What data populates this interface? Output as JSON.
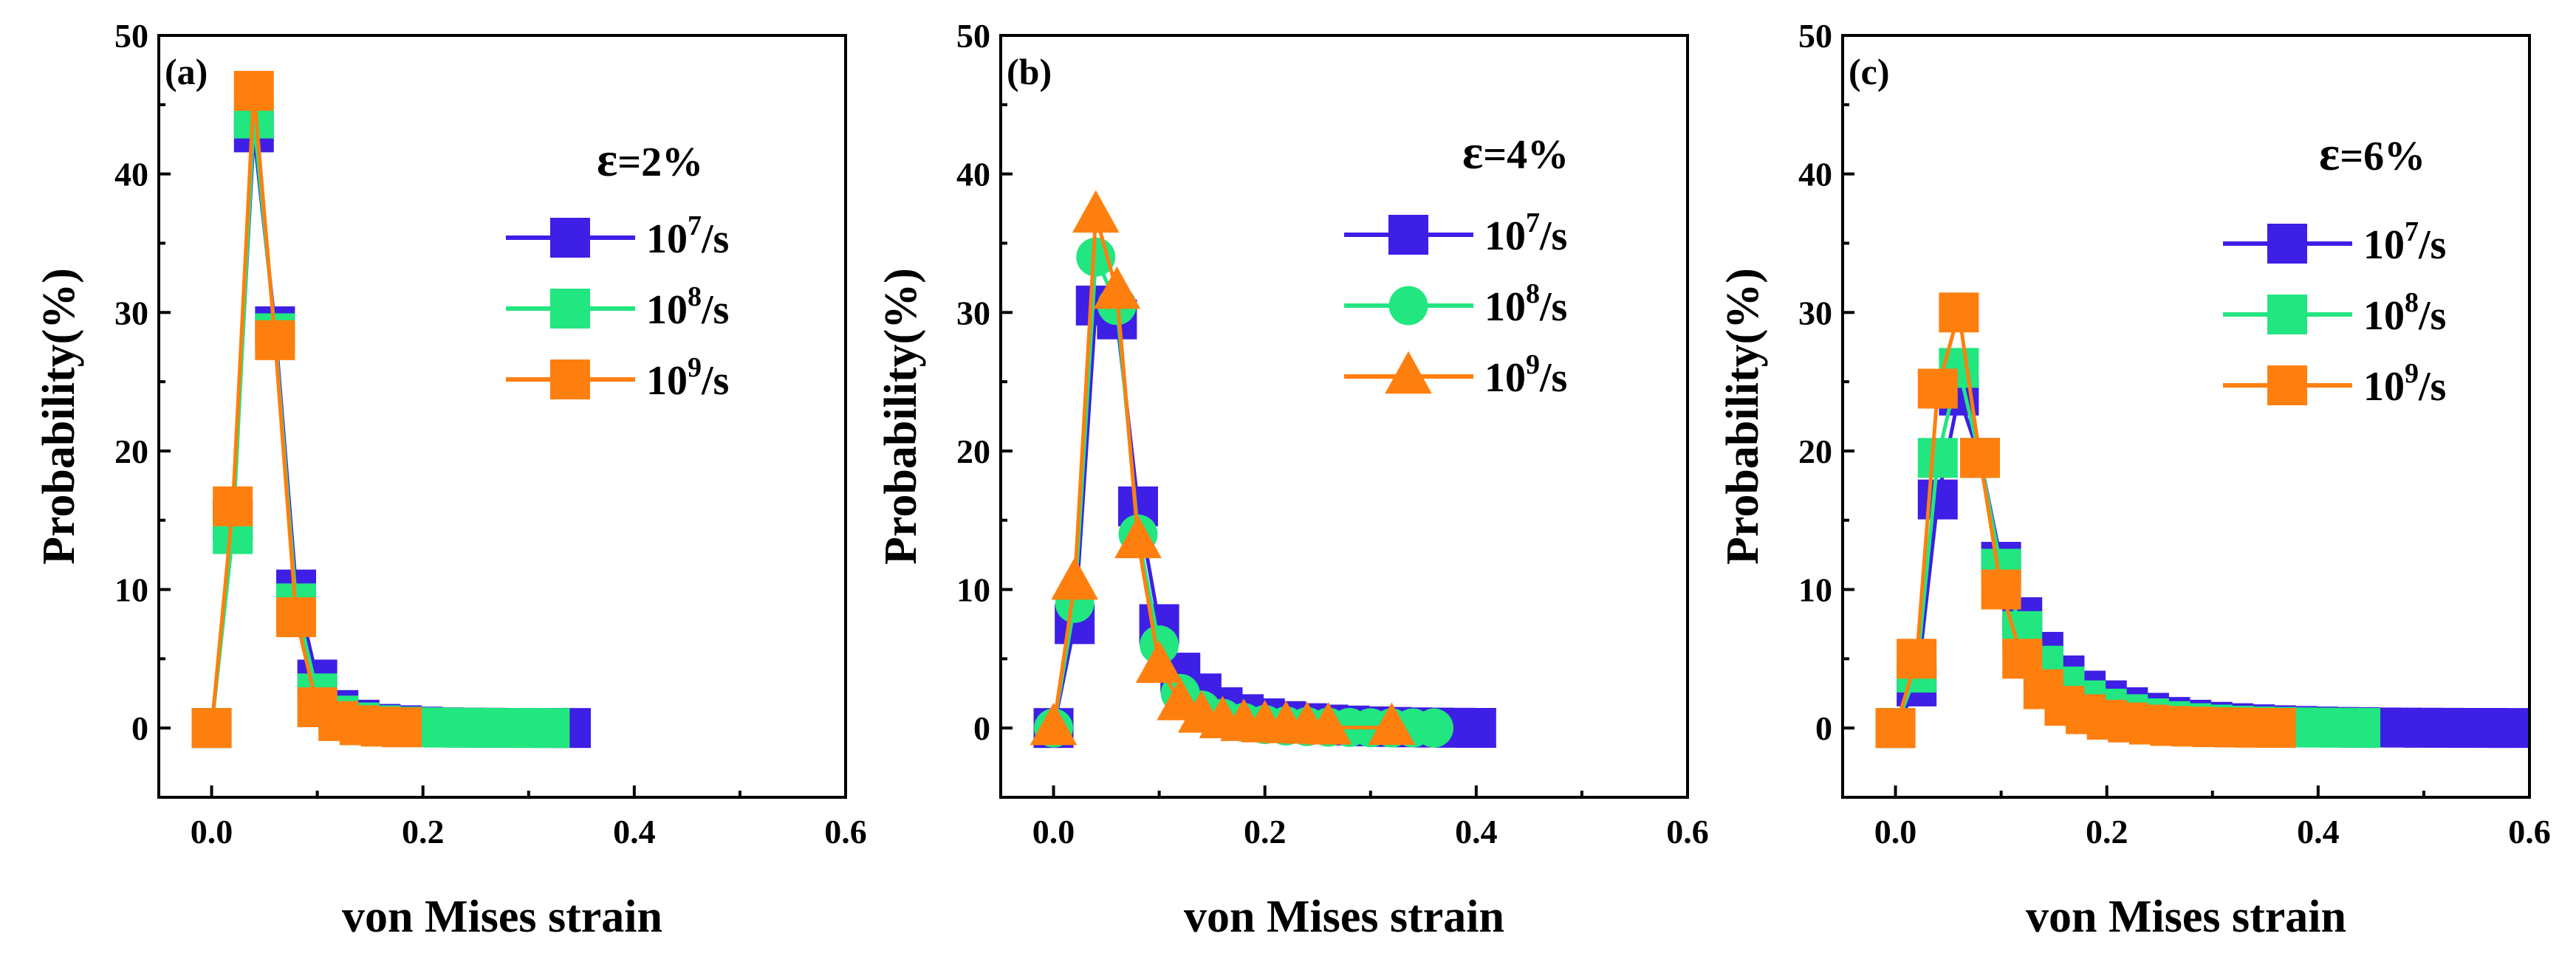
{
  "chart_data": [
    {
      "type": "line",
      "panel_label": "(a)",
      "strain_symbol": "ε",
      "strain_value": "=2%",
      "xlabel": "von Mises strain",
      "ylabel": "Probability(%)",
      "xlim": [
        -0.05,
        0.6
      ],
      "ylim": [
        -5,
        50
      ],
      "xticks": [
        "0.0",
        "0.2",
        "0.4",
        "0.6"
      ],
      "yticks": [
        "0",
        "10",
        "20",
        "30",
        "40",
        "50"
      ],
      "series": [
        {
          "name": "10^7/s",
          "rate_base": "10",
          "rate_exp": "7",
          "rate_unit": "/s",
          "marker": "square",
          "color": "#3d1fe6",
          "x": [
            0.0,
            0.02,
            0.04,
            0.06,
            0.08,
            0.1,
            0.12,
            0.14,
            0.16,
            0.18,
            0.2,
            0.22,
            0.24,
            0.26,
            0.28,
            0.3,
            0.32,
            0.34
          ],
          "y": [
            0,
            15,
            43,
            29,
            10,
            3.5,
            1.3,
            0.6,
            0.3,
            0.2,
            0.1,
            0.05,
            0.03,
            0.02,
            0.01,
            0.01,
            0.005,
            0.002
          ]
        },
        {
          "name": "10^8/s",
          "rate_base": "10",
          "rate_exp": "8",
          "rate_unit": "/s",
          "marker": "square",
          "color": "#22e680",
          "x": [
            0.0,
            0.02,
            0.04,
            0.06,
            0.08,
            0.1,
            0.12,
            0.14,
            0.16,
            0.18,
            0.2,
            0.22,
            0.24,
            0.26,
            0.28,
            0.3,
            0.32
          ],
          "y": [
            0,
            14,
            44,
            28.5,
            9,
            2.5,
            0.9,
            0.4,
            0.2,
            0.1,
            0.05,
            0.03,
            0.02,
            0.01,
            0.005,
            0.003,
            0.002
          ]
        },
        {
          "name": "10^9/s",
          "rate_base": "10",
          "rate_exp": "9",
          "rate_unit": "/s",
          "marker": "square",
          "color": "#ff7f0e",
          "x": [
            0.0,
            0.02,
            0.04,
            0.06,
            0.08,
            0.1,
            0.12,
            0.14,
            0.16,
            0.18
          ],
          "y": [
            0,
            16,
            46,
            28,
            8,
            1.5,
            0.5,
            0.2,
            0.1,
            0.05
          ]
        }
      ]
    },
    {
      "type": "line",
      "panel_label": "(b)",
      "strain_symbol": "ε",
      "strain_value": "=4%",
      "xlabel": "von Mises strain",
      "ylabel": "Probability(%)",
      "xlim": [
        -0.05,
        0.6
      ],
      "ylim": [
        -5,
        50
      ],
      "xticks": [
        "0.0",
        "0.2",
        "0.4",
        "0.6"
      ],
      "yticks": [
        "0",
        "10",
        "20",
        "30",
        "40",
        "50"
      ],
      "series": [
        {
          "name": "10^7/s",
          "rate_base": "10",
          "rate_exp": "7",
          "rate_unit": "/s",
          "marker": "square",
          "color": "#3d1fe6",
          "x": [
            0.0,
            0.02,
            0.04,
            0.06,
            0.08,
            0.1,
            0.12,
            0.14,
            0.16,
            0.18,
            0.2,
            0.22,
            0.24,
            0.26,
            0.28,
            0.3,
            0.32,
            0.34,
            0.36,
            0.38,
            0.4
          ],
          "y": [
            0,
            7.5,
            30.5,
            29.5,
            16,
            7.5,
            4,
            2.5,
            1.5,
            1,
            0.7,
            0.5,
            0.35,
            0.25,
            0.18,
            0.12,
            0.08,
            0.05,
            0.03,
            0.02,
            0.01
          ]
        },
        {
          "name": "10^8/s",
          "rate_base": "10",
          "rate_exp": "8",
          "rate_unit": "/s",
          "marker": "circle",
          "color": "#22e680",
          "x": [
            0.0,
            0.02,
            0.04,
            0.06,
            0.08,
            0.1,
            0.12,
            0.14,
            0.16,
            0.18,
            0.2,
            0.22,
            0.24,
            0.26,
            0.28,
            0.3,
            0.32,
            0.34,
            0.36
          ],
          "y": [
            0,
            9,
            34,
            30.5,
            14,
            6,
            2.5,
            1.3,
            0.7,
            0.4,
            0.25,
            0.15,
            0.1,
            0.06,
            0.04,
            0.02,
            0.01,
            0.005,
            0.002
          ]
        },
        {
          "name": "10^9/s",
          "rate_base": "10",
          "rate_exp": "9",
          "rate_unit": "/s",
          "marker": "triangle",
          "color": "#ff7f0e",
          "x": [
            0.0,
            0.02,
            0.04,
            0.06,
            0.08,
            0.1,
            0.12,
            0.14,
            0.16,
            0.18,
            0.2,
            0.22,
            0.24,
            0.26,
            0.32
          ],
          "y": [
            0,
            10.5,
            37,
            31.5,
            13.5,
            4.5,
            1.8,
            0.9,
            0.5,
            0.3,
            0.2,
            0.15,
            0.1,
            0.05,
            0.02
          ]
        }
      ]
    },
    {
      "type": "line",
      "panel_label": "(c)",
      "strain_symbol": "ε",
      "strain_value": "=6%",
      "xlabel": "von Mises strain",
      "ylabel": "Probability(%)",
      "xlim": [
        -0.05,
        0.6
      ],
      "ylim": [
        -5,
        50
      ],
      "xticks": [
        "0.0",
        "0.2",
        "0.4",
        "0.6"
      ],
      "yticks": [
        "0",
        "10",
        "20",
        "30",
        "40",
        "50"
      ],
      "series": [
        {
          "name": "10^7/s",
          "rate_base": "10",
          "rate_exp": "7",
          "rate_unit": "/s",
          "marker": "square",
          "color": "#3d1fe6",
          "x": [
            0.0,
            0.02,
            0.04,
            0.06,
            0.08,
            0.1,
            0.12,
            0.14,
            0.16,
            0.18,
            0.2,
            0.22,
            0.24,
            0.26,
            0.28,
            0.3,
            0.32,
            0.34,
            0.36,
            0.38,
            0.4,
            0.42,
            0.44,
            0.46,
            0.48,
            0.5,
            0.52,
            0.54,
            0.56,
            0.58
          ],
          "y": [
            0,
            3,
            16.5,
            24,
            19.5,
            12,
            8,
            5.5,
            3.8,
            2.7,
            2,
            1.5,
            1.1,
            0.8,
            0.6,
            0.45,
            0.35,
            0.27,
            0.2,
            0.15,
            0.11,
            0.08,
            0.06,
            0.04,
            0.03,
            0.02,
            0.015,
            0.01,
            0.006,
            0.003
          ]
        },
        {
          "name": "10^8/s",
          "rate_base": "10",
          "rate_exp": "8",
          "rate_unit": "/s",
          "marker": "square",
          "color": "#22e680",
          "x": [
            0.0,
            0.02,
            0.04,
            0.06,
            0.08,
            0.1,
            0.12,
            0.14,
            0.16,
            0.18,
            0.2,
            0.22,
            0.24,
            0.26,
            0.28,
            0.3,
            0.32,
            0.34,
            0.36,
            0.38,
            0.4,
            0.42,
            0.44
          ],
          "y": [
            0,
            4,
            19.5,
            26,
            19.5,
            11.5,
            7,
            4.5,
            3,
            2,
            1.4,
            1,
            0.7,
            0.5,
            0.35,
            0.25,
            0.17,
            0.12,
            0.08,
            0.05,
            0.03,
            0.02,
            0.01
          ]
        },
        {
          "name": "10^9/s",
          "rate_base": "10",
          "rate_exp": "9",
          "rate_unit": "/s",
          "marker": "square",
          "color": "#ff7f0e",
          "x": [
            0.0,
            0.02,
            0.04,
            0.06,
            0.08,
            0.1,
            0.12,
            0.14,
            0.16,
            0.18,
            0.2,
            0.22,
            0.24,
            0.26,
            0.28,
            0.3,
            0.32,
            0.34,
            0.36
          ],
          "y": [
            0,
            5,
            24.5,
            30,
            19.5,
            10,
            5,
            2.8,
            1.6,
            1,
            0.6,
            0.4,
            0.25,
            0.15,
            0.1,
            0.06,
            0.04,
            0.02,
            0.01
          ]
        }
      ]
    }
  ]
}
